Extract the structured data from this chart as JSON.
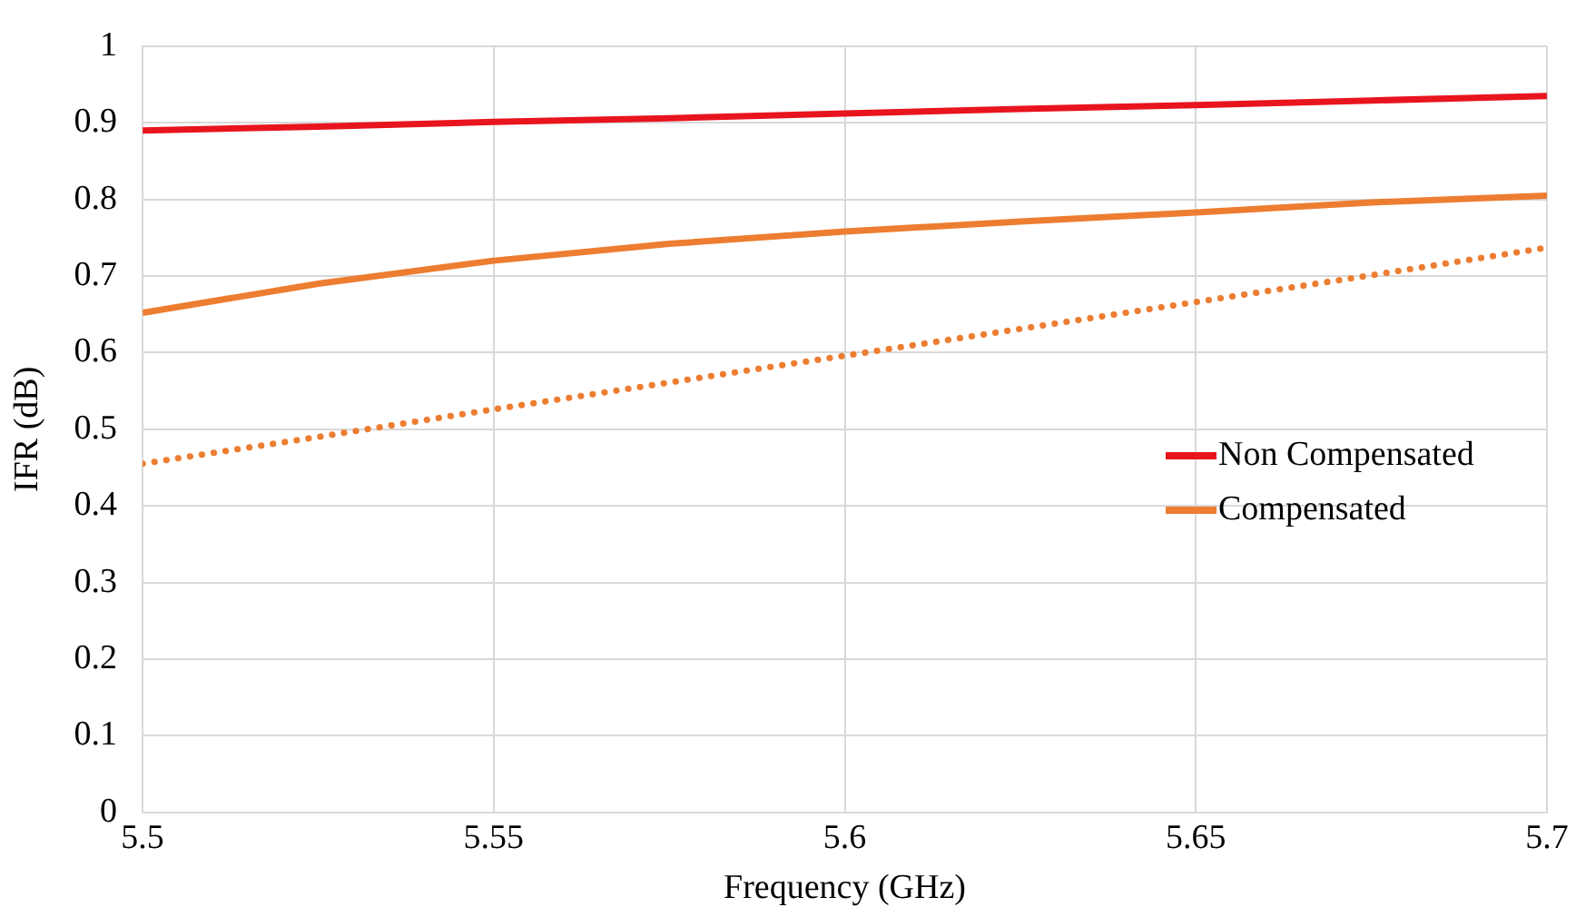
{
  "chart_data": {
    "type": "line",
    "xlabel": "Frequency (GHz)",
    "ylabel": "IFR (dB)",
    "x": [
      5.5,
      5.525,
      5.55,
      5.575,
      5.6,
      5.625,
      5.65,
      5.675,
      5.7
    ],
    "series": [
      {
        "name": "Non Compensated",
        "color": "#e8141e",
        "values": [
          0.89,
          0.895,
          0.901,
          0.906,
          0.912,
          0.918,
          0.923,
          0.929,
          0.935
        ]
      },
      {
        "name": "Compensated",
        "color": "#ed7d31",
        "values": [
          0.652,
          0.69,
          0.72,
          0.742,
          0.758,
          0.771,
          0.783,
          0.796,
          0.805
        ]
      },
      {
        "color": "#ed7d31",
        "line_style": "dotted",
        "values": [
          0.455,
          0.49,
          0.526,
          0.561,
          0.596,
          0.631,
          0.666,
          0.701,
          0.737
        ]
      }
    ],
    "xlim": [
      5.5,
      5.7
    ],
    "xticks": [
      5.5,
      5.55,
      5.6,
      5.65,
      5.7
    ],
    "ylim": [
      0,
      1
    ],
    "yticks": [
      0,
      0.1,
      0.2,
      0.3,
      0.4,
      0.5,
      0.6,
      0.7,
      0.8,
      0.9,
      1
    ],
    "grid": true,
    "legend": "right",
    "marker": "none",
    "line_style": "solid"
  }
}
